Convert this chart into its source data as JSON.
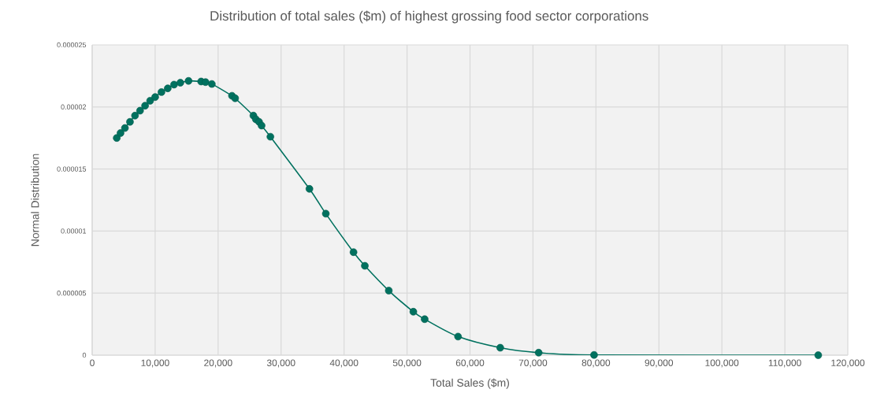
{
  "chart_data": {
    "type": "line",
    "title": "Distribution of total sales ($m) of highest grossing food sector corporations",
    "xlabel": "Total Sales ($m)",
    "ylabel": "Normal Distribution",
    "series": [
      {
        "color": "#00715f",
        "x": [
          3900,
          4500,
          5200,
          6000,
          6800,
          7600,
          8400,
          9200,
          10000,
          11000,
          12000,
          13000,
          14000,
          15300,
          17300,
          18000,
          19000,
          22200,
          22700,
          25600,
          26000,
          26500,
          26900,
          28300,
          34500,
          37100,
          41500,
          43300,
          47100,
          51000,
          52800,
          58100,
          64800,
          70900,
          79700,
          115300
        ],
        "values": [
          1.75e-05,
          1.79e-05,
          1.83e-05,
          1.88e-05,
          1.93e-05,
          1.97e-05,
          2.01e-05,
          2.05e-05,
          2.08e-05,
          2.12e-05,
          2.15e-05,
          2.18e-05,
          2.195e-05,
          2.21e-05,
          2.205e-05,
          2.2e-05,
          2.185e-05,
          2.09e-05,
          2.07e-05,
          1.93e-05,
          1.9e-05,
          1.88e-05,
          1.85e-05,
          1.76e-05,
          1.34e-05,
          1.14e-05,
          8.3e-06,
          7.2e-06,
          5.2e-06,
          3.5e-06,
          2.9e-06,
          1.5e-06,
          6e-07,
          2e-07,
          2e-08,
          0.0
        ]
      }
    ],
    "xlim": [
      0,
      120000
    ],
    "xticks": [
      0,
      {
        "value": 10000,
        "label": "10,000"
      },
      {
        "value": 20000,
        "label": "20,000"
      },
      {
        "value": 30000,
        "label": "30,000"
      },
      {
        "value": 40000,
        "label": "40,000"
      },
      {
        "value": 50000,
        "label": "50,000"
      },
      {
        "value": 60000,
        "label": "60,000"
      },
      {
        "value": 70000,
        "label": "70,000"
      },
      {
        "value": 80000,
        "label": "80,000"
      },
      {
        "value": 90000,
        "label": "90,000"
      },
      {
        "value": 100000,
        "label": "100,000"
      },
      {
        "value": 110000,
        "label": "110,000"
      },
      {
        "value": 120000,
        "label": "120,000"
      }
    ],
    "ylim": [
      0,
      2.5e-05
    ],
    "yticks": [
      0,
      {
        "value": 5e-06,
        "label": "0.000005"
      },
      {
        "value": 1e-05,
        "label": "0.00001"
      },
      {
        "value": 1.5e-05,
        "label": "0.000015"
      },
      {
        "value": 2e-05,
        "label": "0.00002"
      },
      {
        "value": 2.5e-05,
        "label": "0.000025"
      }
    ],
    "grid": true,
    "marker": "circle",
    "line_style": "solid"
  }
}
